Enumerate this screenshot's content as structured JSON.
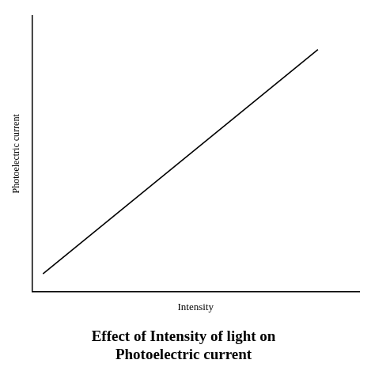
{
  "chart_data": {
    "type": "line",
    "title": "Effect of Intensity of light on\nPhotoelectric current",
    "x_label": "Intensity",
    "y_label": "Photoelectric current",
    "x": [
      0.0,
      1.0
    ],
    "values": [
      0.0,
      1.0
    ],
    "color": "#000000",
    "xlim": [
      -0.04,
      1.15
    ],
    "ylim": [
      -0.08,
      1.15
    ],
    "xticks": [],
    "yticks": [],
    "tick_labels": false,
    "grid": false
  }
}
